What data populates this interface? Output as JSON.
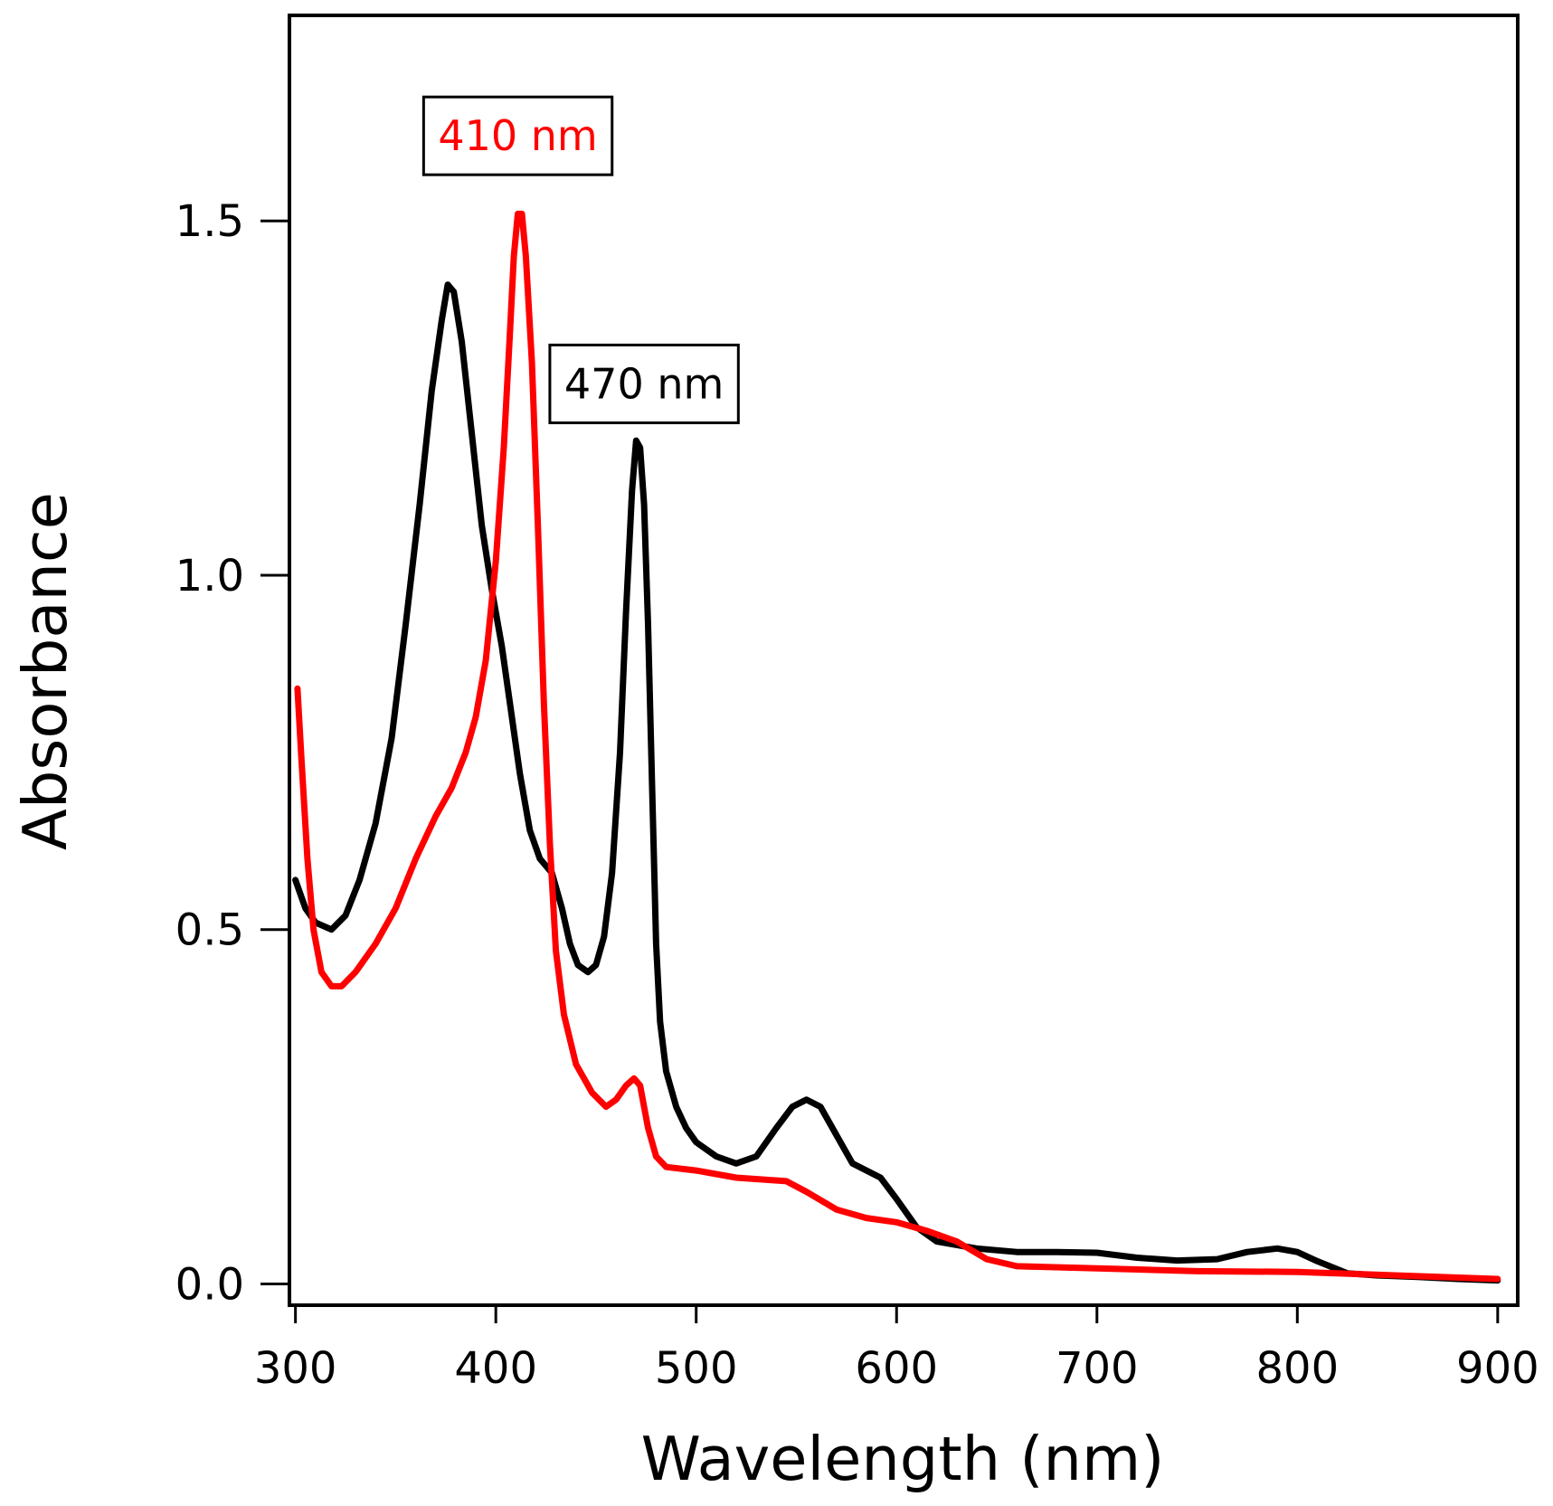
{
  "chart_data": {
    "type": "line",
    "title": "",
    "xlabel": "Wavelength (nm)",
    "ylabel": "Absorbance",
    "xlim": [
      297,
      910
    ],
    "ylim": [
      -0.03,
      1.79
    ],
    "xticks": [
      300,
      400,
      500,
      600,
      700,
      800,
      900
    ],
    "xtick_labels": [
      "300",
      "400",
      "500",
      "600",
      "700",
      "800",
      "900"
    ],
    "yticks": [
      0.0,
      0.5,
      1.0,
      1.5
    ],
    "ytick_labels": [
      "0.0",
      "0.5",
      "1.0",
      "1.5"
    ],
    "grid": false,
    "series": [
      {
        "name": "black",
        "color": "#000000",
        "points": [
          [
            300,
            0.57
          ],
          [
            305,
            0.53
          ],
          [
            310,
            0.51
          ],
          [
            318,
            0.5
          ],
          [
            325,
            0.52
          ],
          [
            332,
            0.57
          ],
          [
            340,
            0.65
          ],
          [
            348,
            0.77
          ],
          [
            355,
            0.93
          ],
          [
            362,
            1.1
          ],
          [
            368,
            1.26
          ],
          [
            373,
            1.36
          ],
          [
            376,
            1.41
          ],
          [
            379,
            1.4
          ],
          [
            383,
            1.33
          ],
          [
            388,
            1.2
          ],
          [
            393,
            1.07
          ],
          [
            398,
            0.98
          ],
          [
            403,
            0.9
          ],
          [
            407,
            0.82
          ],
          [
            412,
            0.72
          ],
          [
            417,
            0.64
          ],
          [
            422,
            0.6
          ],
          [
            428,
            0.58
          ],
          [
            433,
            0.53
          ],
          [
            437,
            0.48
          ],
          [
            441,
            0.45
          ],
          [
            446,
            0.44
          ],
          [
            450,
            0.45
          ],
          [
            454,
            0.49
          ],
          [
            458,
            0.58
          ],
          [
            462,
            0.75
          ],
          [
            465,
            0.95
          ],
          [
            468,
            1.12
          ],
          [
            470,
            1.19
          ],
          [
            472,
            1.18
          ],
          [
            474,
            1.1
          ],
          [
            476,
            0.93
          ],
          [
            478,
            0.7
          ],
          [
            480,
            0.48
          ],
          [
            482,
            0.37
          ],
          [
            485,
            0.3
          ],
          [
            490,
            0.25
          ],
          [
            495,
            0.22
          ],
          [
            500,
            0.2
          ],
          [
            510,
            0.18
          ],
          [
            520,
            0.17
          ],
          [
            530,
            0.18
          ],
          [
            540,
            0.22
          ],
          [
            548,
            0.25
          ],
          [
            555,
            0.26
          ],
          [
            562,
            0.25
          ],
          [
            570,
            0.21
          ],
          [
            578,
            0.17
          ],
          [
            585,
            0.16
          ],
          [
            592,
            0.15
          ],
          [
            600,
            0.12
          ],
          [
            610,
            0.08
          ],
          [
            620,
            0.06
          ],
          [
            630,
            0.055
          ],
          [
            640,
            0.05
          ],
          [
            660,
            0.045
          ],
          [
            680,
            0.045
          ],
          [
            700,
            0.044
          ],
          [
            720,
            0.037
          ],
          [
            740,
            0.033
          ],
          [
            760,
            0.035
          ],
          [
            775,
            0.045
          ],
          [
            790,
            0.05
          ],
          [
            800,
            0.045
          ],
          [
            810,
            0.032
          ],
          [
            825,
            0.015
          ],
          [
            840,
            0.012
          ],
          [
            860,
            0.01
          ],
          [
            880,
            0.007
          ],
          [
            900,
            0.005
          ]
        ]
      },
      {
        "name": "red",
        "color": "#ff0000",
        "points": [
          [
            301,
            0.84
          ],
          [
            303,
            0.74
          ],
          [
            306,
            0.6
          ],
          [
            309,
            0.5
          ],
          [
            313,
            0.44
          ],
          [
            318,
            0.42
          ],
          [
            323,
            0.42
          ],
          [
            330,
            0.44
          ],
          [
            340,
            0.48
          ],
          [
            350,
            0.53
          ],
          [
            360,
            0.6
          ],
          [
            370,
            0.66
          ],
          [
            378,
            0.7
          ],
          [
            385,
            0.75
          ],
          [
            390,
            0.8
          ],
          [
            395,
            0.88
          ],
          [
            400,
            1.02
          ],
          [
            404,
            1.18
          ],
          [
            407,
            1.34
          ],
          [
            409,
            1.45
          ],
          [
            411,
            1.51
          ],
          [
            413,
            1.51
          ],
          [
            415,
            1.45
          ],
          [
            418,
            1.3
          ],
          [
            421,
            1.07
          ],
          [
            424,
            0.82
          ],
          [
            427,
            0.62
          ],
          [
            430,
            0.47
          ],
          [
            434,
            0.38
          ],
          [
            440,
            0.31
          ],
          [
            448,
            0.27
          ],
          [
            455,
            0.25
          ],
          [
            460,
            0.26
          ],
          [
            465,
            0.28
          ],
          [
            469,
            0.29
          ],
          [
            472,
            0.28
          ],
          [
            476,
            0.22
          ],
          [
            480,
            0.18
          ],
          [
            485,
            0.165
          ],
          [
            500,
            0.16
          ],
          [
            520,
            0.15
          ],
          [
            545,
            0.145
          ],
          [
            555,
            0.13
          ],
          [
            570,
            0.105
          ],
          [
            585,
            0.093
          ],
          [
            600,
            0.087
          ],
          [
            615,
            0.075
          ],
          [
            630,
            0.06
          ],
          [
            645,
            0.035
          ],
          [
            660,
            0.025
          ],
          [
            700,
            0.022
          ],
          [
            750,
            0.018
          ],
          [
            800,
            0.017
          ],
          [
            850,
            0.012
          ],
          [
            900,
            0.007
          ]
        ]
      }
    ],
    "annotations": [
      {
        "text": "410 nm",
        "color": "#ff0000",
        "x": 411,
        "y": 1.62,
        "box": true
      },
      {
        "text": "470 nm",
        "color": "#000000",
        "x": 474,
        "y": 1.27,
        "box": true
      }
    ]
  }
}
